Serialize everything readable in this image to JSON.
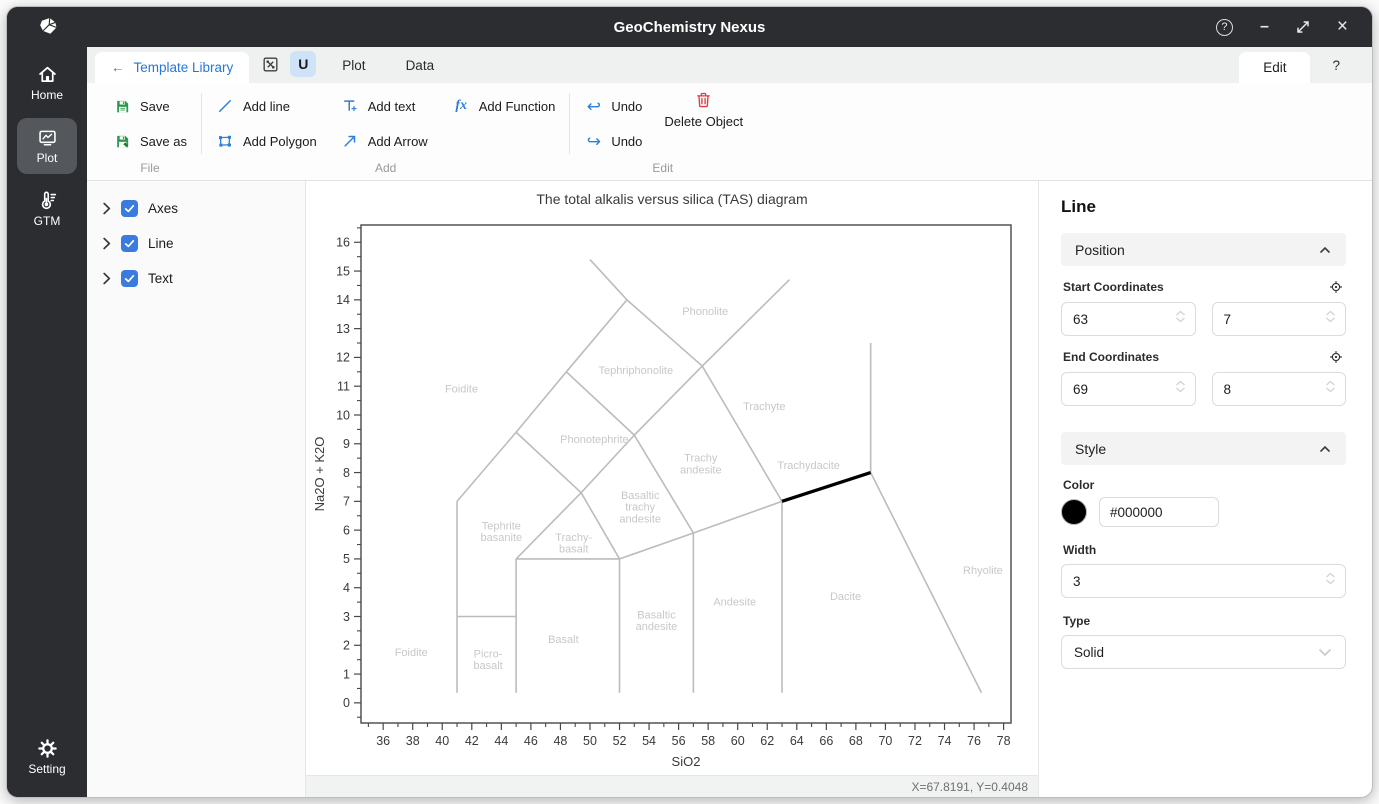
{
  "window": {
    "title": "GeoChemistry Nexus"
  },
  "titlebar": {
    "controls": {
      "help": "?",
      "minimize": "–",
      "maximize": "resize",
      "close": "×"
    }
  },
  "sidebar": {
    "items": [
      {
        "label": "Home",
        "icon": "home-icon",
        "active": false
      },
      {
        "label": "Plot",
        "icon": "plot-icon",
        "active": true
      },
      {
        "label": "GTM",
        "icon": "thermometer-icon",
        "active": false
      }
    ],
    "bottom": {
      "label": "Setting",
      "icon": "gear-icon"
    }
  },
  "tabbar": {
    "back_arrow": "←",
    "back_label": "Template Library",
    "underline_button": "U",
    "tabs": [
      {
        "label": "Plot"
      },
      {
        "label": "Data"
      }
    ],
    "right_tabs": [
      {
        "label": "Edit",
        "active": true
      },
      {
        "label": "?",
        "active": false
      }
    ]
  },
  "ribbon": {
    "groups": [
      {
        "caption": "File",
        "buttons": [
          {
            "label": "Save",
            "icon": "save-icon"
          },
          {
            "label": "Save as",
            "icon": "save-as-icon"
          }
        ]
      },
      {
        "caption": "Add",
        "buttons": [
          {
            "label": "Add line",
            "icon": "add-line-icon"
          },
          {
            "label": "Add Polygon",
            "icon": "add-polygon-icon"
          },
          {
            "label": "Add text",
            "icon": "add-text-icon"
          },
          {
            "label": "Add Arrow",
            "icon": "add-arrow-icon"
          },
          {
            "label": "Add Function",
            "icon": "add-function-icon"
          }
        ]
      },
      {
        "caption": "Edit",
        "buttons": [
          {
            "label": "Undo",
            "icon": "undo-icon"
          },
          {
            "label": "Undo",
            "icon": "redo-icon"
          },
          {
            "label": "Delete Object",
            "icon": "trash-icon",
            "big": true
          }
        ]
      }
    ]
  },
  "tree": {
    "items": [
      {
        "label": "Axes",
        "checked": true
      },
      {
        "label": "Line",
        "checked": true
      },
      {
        "label": "Text",
        "checked": true
      }
    ]
  },
  "inspector": {
    "title": "Line",
    "position_section": {
      "header": "Position",
      "start_label": "Start Coordinates",
      "start_x": "63",
      "start_y": "7",
      "end_label": "End Coordinates",
      "end_x": "69",
      "end_y": "8"
    },
    "style_section": {
      "header": "Style",
      "color_label": "Color",
      "color_value": "#000000",
      "color_swatch": "#000000",
      "width_label": "Width",
      "width_value": "3",
      "type_label": "Type",
      "type_value": "Solid"
    }
  },
  "statusbar": {
    "coords": "X=67.8191, Y=0.4048"
  },
  "colors": {
    "titlebar_bg": "#2b2d30",
    "accent_blue": "#2677d9",
    "checkbox_blue": "#3b7be0",
    "save_green": "#28994d",
    "delete_red": "#e03a3a",
    "boundary_gray": "#bcbcbc",
    "selected_black": "#000000"
  },
  "chart_data": {
    "type": "line",
    "title": "The total alkalis versus silica (TAS) diagram",
    "xlabel": "SiO2",
    "ylabel": "Na2O + K2O",
    "xlim": [
      34.5,
      78.5
    ],
    "ylim": [
      -0.7,
      16.6
    ],
    "grid": false,
    "x_ticks": [
      36,
      38,
      40,
      42,
      44,
      46,
      48,
      50,
      52,
      54,
      56,
      58,
      60,
      62,
      64,
      66,
      68,
      70,
      72,
      74,
      76,
      78
    ],
    "y_ticks": [
      0,
      1,
      2,
      3,
      4,
      5,
      6,
      7,
      8,
      9,
      10,
      11,
      12,
      13,
      14,
      15,
      16
    ],
    "boundary_color": "#bcbcbc",
    "label_color": "#c8c8c8",
    "boundaries": [
      [
        41,
        0.35,
        41,
        7
      ],
      [
        41,
        3,
        45,
        3
      ],
      [
        45,
        0.35,
        45,
        5
      ],
      [
        45,
        5,
        52,
        5
      ],
      [
        52,
        0.35,
        52,
        5
      ],
      [
        57,
        0.35,
        57,
        5.9
      ],
      [
        63,
        0.35,
        63,
        7
      ],
      [
        52,
        5,
        57,
        5.9
      ],
      [
        57,
        5.9,
        63,
        7
      ],
      [
        69,
        8,
        76.5,
        0.35
      ],
      [
        69,
        8,
        69,
        12.5
      ],
      [
        41,
        7,
        45,
        9.4
      ],
      [
        45,
        9.4,
        48.4,
        11.5
      ],
      [
        48.4,
        11.5,
        52.5,
        14
      ],
      [
        52.5,
        14,
        50,
        15.4
      ],
      [
        45,
        5,
        49.4,
        7.3
      ],
      [
        49.4,
        7.3,
        52,
        5
      ],
      [
        45,
        9.4,
        49.4,
        7.3
      ],
      [
        49.4,
        7.3,
        53,
        9.3
      ],
      [
        53,
        9.3,
        57,
        5.9
      ],
      [
        48.4,
        11.5,
        53,
        9.3
      ],
      [
        53,
        9.3,
        57.6,
        11.7
      ],
      [
        52.5,
        14,
        57.6,
        11.7
      ],
      [
        57.6,
        11.7,
        63.5,
        14.7
      ],
      [
        57.6,
        11.7,
        63,
        7
      ]
    ],
    "selected_line": {
      "x1": 63,
      "y1": 7,
      "x2": 69,
      "y2": 8,
      "color": "#000000",
      "width": 3,
      "type": "Solid"
    },
    "field_labels": [
      {
        "text": "Foidite",
        "x": 41.3,
        "y": 10.9
      },
      {
        "text": "Phonolite",
        "x": 57.8,
        "y": 13.6
      },
      {
        "text": "Tephriphonolite",
        "x": 53.1,
        "y": 11.55
      },
      {
        "text": "Trachyte",
        "x": 61.8,
        "y": 10.3
      },
      {
        "text": "Phonotephrite",
        "x": 50.3,
        "y": 9.15
      },
      {
        "text": "Trachy\nandesite",
        "x": 57.5,
        "y": 8.3
      },
      {
        "text": "Trachydacite",
        "x": 64.8,
        "y": 8.25
      },
      {
        "text": "Tephrite\nbasanite",
        "x": 44.0,
        "y": 5.95
      },
      {
        "text": "Trachy-\nbasalt",
        "x": 48.9,
        "y": 5.55
      },
      {
        "text": "Basaltic\ntrachy\nandesite",
        "x": 53.4,
        "y": 6.8
      },
      {
        "text": "Basaltic\nandesite",
        "x": 54.5,
        "y": 2.85
      },
      {
        "text": "Andesite",
        "x": 59.8,
        "y": 3.5
      },
      {
        "text": "Dacite",
        "x": 67.3,
        "y": 3.7
      },
      {
        "text": "Rhyolite",
        "x": 76.6,
        "y": 4.6
      },
      {
        "text": "Basalt",
        "x": 48.2,
        "y": 2.2
      },
      {
        "text": "Picro-\nbasalt",
        "x": 43.1,
        "y": 1.5
      },
      {
        "text": "Foidite",
        "x": 37.9,
        "y": 1.75
      }
    ]
  }
}
